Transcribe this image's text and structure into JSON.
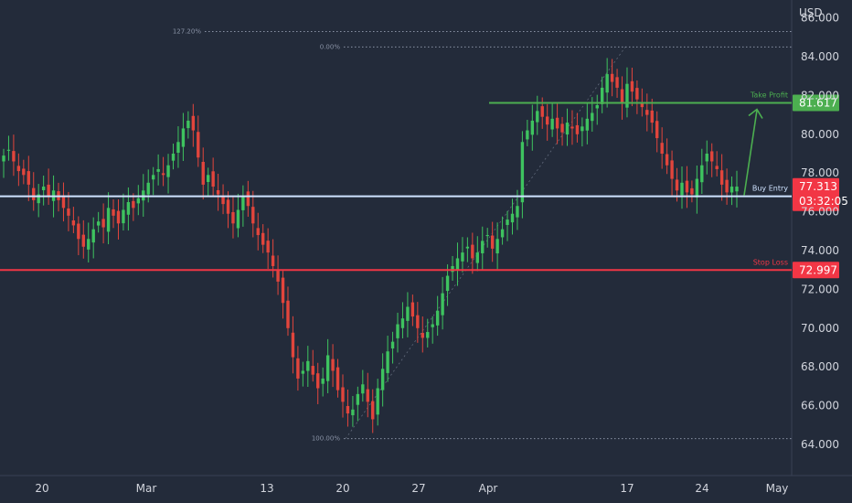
{
  "currency": "USD",
  "colors": {
    "background": "#232b3a",
    "up": "#3ec35f",
    "down": "#e2453c",
    "grid": "#2c3444",
    "take_profit": "#4caf50",
    "stop_loss": "#f23645",
    "buy_entry": "#cfe3ff",
    "fib": "#8a93a6",
    "axis_text": "#d1d4dc"
  },
  "chart_data": {
    "type": "candlestick",
    "y_ticks": [
      "64.000",
      "66.000",
      "68.000",
      "70.000",
      "72.000",
      "74.000",
      "76.000",
      "78.000",
      "80.000",
      "82.000",
      "84.000",
      "86.000"
    ],
    "x_ticks": [
      "20",
      "Mar",
      "13",
      "20",
      "27",
      "Apr",
      "17",
      "24",
      "May"
    ],
    "ylim": [
      63.0,
      87.0
    ],
    "levels": [
      {
        "name": "Take Profit",
        "value": 81.617,
        "label": "81.617"
      },
      {
        "name": "Buy Entry",
        "value": 76.8
      },
      {
        "name": "Stop Loss",
        "value": 72.997,
        "label": "72.997"
      }
    ],
    "last_price": {
      "value": 77.313,
      "label": "77.313",
      "countdown": "03:32:05"
    },
    "fib_levels": [
      {
        "label": "127.20%",
        "value": 85.3
      },
      {
        "label": "0.00%",
        "value": 84.5
      },
      {
        "label": "100.00%",
        "value": 64.3
      }
    ],
    "series_close": [
      78.9,
      79.2,
      78.6,
      78.1,
      77.9,
      77.4,
      76.6,
      76.9,
      77.3,
      76.8,
      77.1,
      76.6,
      76.2,
      75.8,
      75.3,
      74.6,
      74.2,
      74.6,
      75.1,
      75.5,
      75.2,
      76.2,
      75.8,
      75.4,
      76.1,
      76.5,
      76.2,
      76.7,
      77.1,
      77.5,
      77.9,
      78.2,
      77.9,
      78.4,
      79.0,
      79.6,
      80.3,
      80.7,
      80.2,
      78.8,
      77.4,
      77.9,
      77.3,
      76.9,
      76.4,
      75.9,
      75.4,
      76.1,
      76.8,
      76.3,
      75.4,
      74.8,
      74.3,
      73.9,
      73.2,
      72.4,
      71.3,
      70.0,
      68.5,
      67.4,
      67.8,
      68.3,
      67.6,
      66.9,
      67.4,
      68.6,
      67.8,
      66.8,
      66.2,
      65.6,
      65.8,
      66.6,
      67.1,
      66.2,
      65.3,
      66.9,
      67.9,
      68.8,
      69.3,
      70.2,
      70.5,
      71.1,
      70.6,
      70.0,
      69.5,
      69.8,
      70.2,
      70.9,
      71.8,
      72.7,
      73.2,
      73.6,
      73.9,
      74.2,
      73.6,
      73.9,
      74.5,
      74.8,
      74.1,
      74.6,
      75.1,
      75.6,
      75.9,
      76.3,
      79.6,
      80.2,
      80.7,
      81.2,
      80.9,
      80.5,
      80.8,
      80.3,
      80.1,
      80.6,
      80.3,
      80.0,
      80.4,
      80.8,
      81.1,
      81.5,
      82.4,
      83.1,
      82.7,
      82.4,
      81.6,
      82.6,
      82.2,
      81.8,
      81.4,
      81.0,
      80.6,
      79.8,
      79.0,
      78.4,
      77.7,
      77.1,
      77.5,
      77.0,
      76.9,
      77.7,
      78.4,
      79.0,
      78.6,
      78.2,
      77.4,
      77.0,
      77.3,
      77.3
    ]
  }
}
